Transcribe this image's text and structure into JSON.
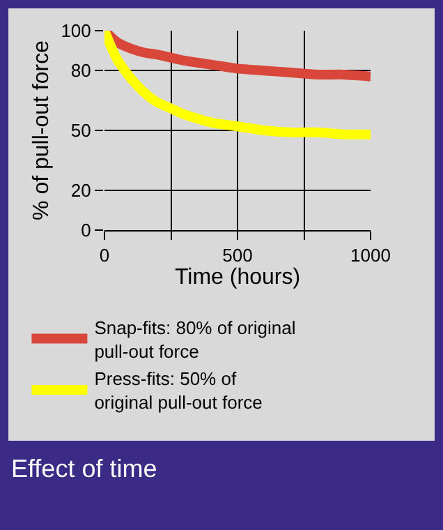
{
  "chart_data": {
    "type": "line",
    "title": "Effect of time",
    "xlabel": "Time (hours)",
    "ylabel": "% of pull-out force",
    "xlim": [
      0,
      1000
    ],
    "ylim": [
      0,
      100
    ],
    "xticks": [
      0,
      {
        "value": 250,
        "label": null
      },
      500,
      {
        "value": 750,
        "label": null
      },
      1000
    ],
    "yticks": [
      0,
      20,
      50,
      80,
      100
    ],
    "grid": true,
    "legend": "bottom",
    "line_style": "solid",
    "marker": "none",
    "series": [
      {
        "name": "Snap-fits: 80% of original pull-out force",
        "color": "#d9473a",
        "x": [
          0,
          50,
          100,
          150,
          200,
          300,
          400,
          500,
          600,
          700,
          800,
          900,
          1000
        ],
        "values": [
          100,
          94,
          91,
          89,
          88,
          85,
          83,
          81,
          80,
          79,
          78,
          78,
          77
        ]
      },
      {
        "name": "Press-fits: 50% of original pull-out force",
        "color": "#ffff00",
        "x": [
          0,
          25,
          50,
          100,
          150,
          200,
          250,
          300,
          400,
          500,
          600,
          700,
          800,
          900,
          1000
        ],
        "values": [
          100,
          92,
          85,
          76,
          69,
          64,
          61,
          58,
          54,
          52,
          50,
          49,
          49,
          48,
          48
        ]
      }
    ]
  }
}
